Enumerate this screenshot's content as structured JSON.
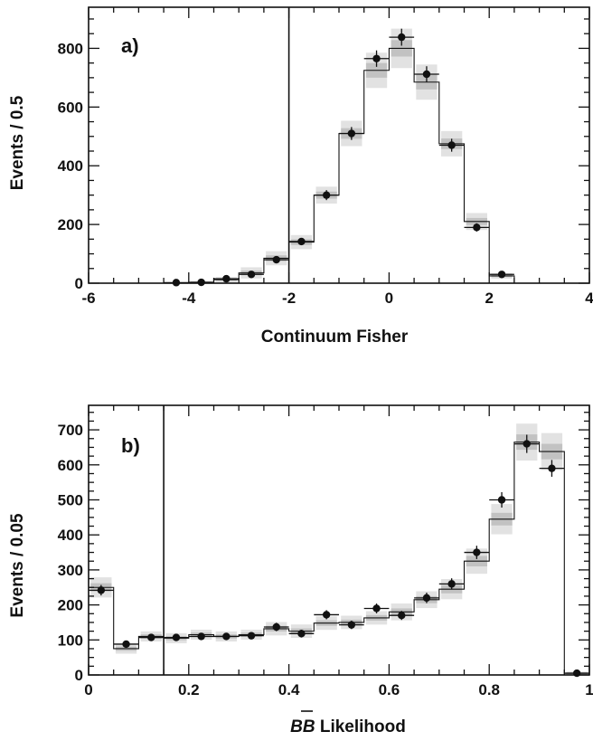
{
  "chart_data": [
    {
      "type": "histogram",
      "panel_label": "a)",
      "xlabel": "Continuum Fisher",
      "ylabel": "Events / 0.5",
      "xlim": [
        -6,
        4
      ],
      "ylim": [
        0,
        940
      ],
      "xticks": [
        -6,
        -4,
        -2,
        0,
        2,
        4
      ],
      "yticks": [
        0,
        200,
        400,
        600,
        800
      ],
      "cut_line_x": -2,
      "bin_width": 0.5,
      "bin_edges": [
        -6,
        -5.5,
        -5,
        -4.5,
        -4,
        -3.5,
        -3,
        -2.5,
        -2,
        -1.5,
        -1,
        -0.5,
        0,
        0.5,
        1,
        1.5,
        2,
        2.5,
        3,
        3.5,
        4
      ],
      "expected": [
        0,
        0,
        0,
        1,
        3,
        12,
        35,
        85,
        140,
        300,
        510,
        725,
        800,
        685,
        475,
        210,
        25,
        0,
        0,
        0
      ],
      "band_half_width": [
        0,
        0,
        0,
        0,
        2,
        4,
        8,
        10,
        10,
        12,
        18,
        25,
        28,
        25,
        18,
        12,
        4,
        0,
        0,
        0
      ],
      "data_x": [
        -4.25,
        -3.75,
        -3.25,
        -2.75,
        -2.25,
        -1.75,
        -1.25,
        -0.75,
        -0.25,
        0.25,
        0.75,
        1.25,
        1.75,
        2.25
      ],
      "data_y": [
        2,
        3,
        15,
        30,
        80,
        142,
        300,
        510,
        765,
        838,
        712,
        470,
        190,
        30
      ],
      "data_err": [
        2,
        2,
        4,
        6,
        9,
        12,
        17,
        22,
        28,
        29,
        27,
        22,
        14,
        5
      ]
    },
    {
      "type": "histogram",
      "panel_label": "b)",
      "xlabel_main": "BB",
      "xlabel_rest": " Likelihood",
      "ylabel": "Events / 0.05",
      "xlim": [
        0,
        1
      ],
      "ylim": [
        0,
        770
      ],
      "xticks": [
        0,
        0.2,
        0.4,
        0.6,
        0.8,
        1
      ],
      "xtick_labels": [
        "0",
        "0.2",
        "0.4",
        "0.6",
        "0.8",
        "1"
      ],
      "yticks": [
        0,
        100,
        200,
        300,
        400,
        500,
        600,
        700
      ],
      "cut_line_x": 0.15,
      "bin_width": 0.05,
      "bin_edges": [
        0,
        0.05,
        0.1,
        0.15,
        0.2,
        0.25,
        0.3,
        0.35,
        0.4,
        0.45,
        0.5,
        0.55,
        0.6,
        0.65,
        0.7,
        0.75,
        0.8,
        0.85,
        0.9,
        0.95,
        1
      ],
      "expected": [
        250,
        75,
        110,
        105,
        115,
        110,
        115,
        132,
        125,
        148,
        150,
        163,
        180,
        215,
        245,
        325,
        445,
        665,
        638,
        5
      ],
      "band_half_width": [
        12,
        6,
        6,
        6,
        6,
        6,
        6,
        8,
        8,
        8,
        8,
        8,
        10,
        10,
        12,
        15,
        18,
        22,
        22,
        2
      ],
      "data_x": [
        0.025,
        0.075,
        0.125,
        0.175,
        0.225,
        0.275,
        0.325,
        0.375,
        0.425,
        0.475,
        0.525,
        0.575,
        0.625,
        0.675,
        0.725,
        0.775,
        0.825,
        0.875,
        0.925,
        0.975
      ],
      "data_y": [
        242,
        88,
        107,
        107,
        110,
        110,
        112,
        137,
        118,
        172,
        143,
        190,
        170,
        220,
        260,
        350,
        500,
        660,
        590,
        5
      ],
      "data_err": [
        15,
        9,
        10,
        10,
        10,
        10,
        10,
        12,
        11,
        13,
        12,
        14,
        13,
        15,
        16,
        19,
        22,
        26,
        24,
        2
      ]
    }
  ]
}
